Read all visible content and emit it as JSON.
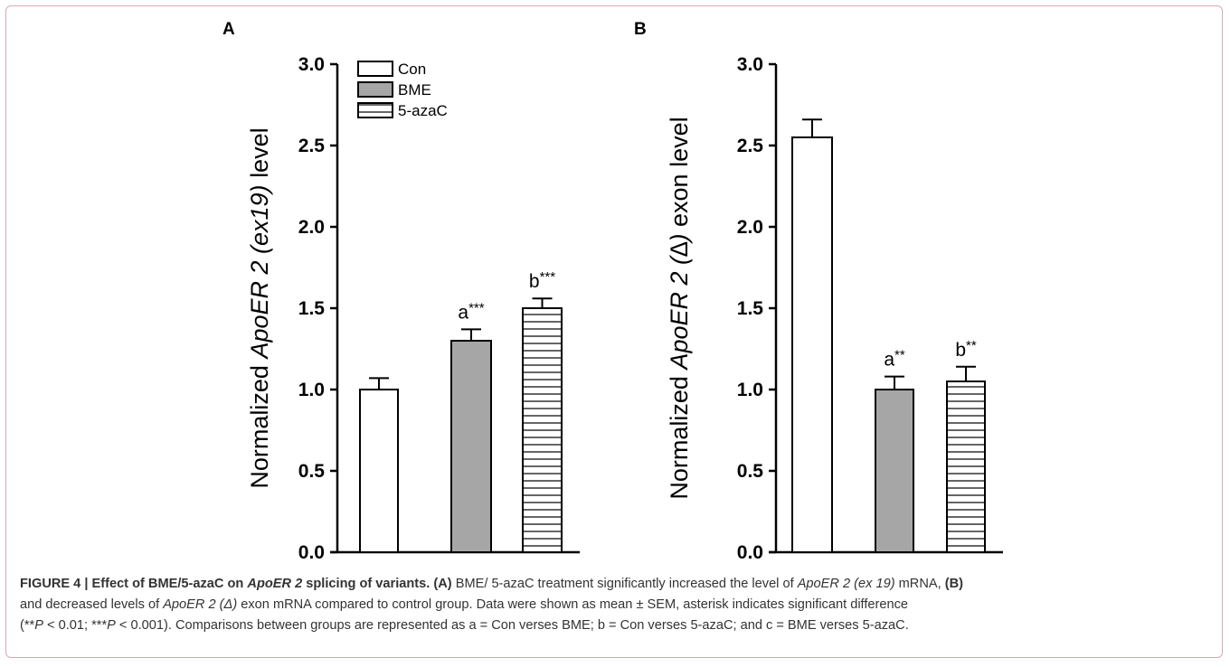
{
  "chart_data": [
    {
      "type": "bar",
      "panel": "A",
      "categories": [
        "Con",
        "BME",
        "5-azaC"
      ],
      "values": [
        1.0,
        1.3,
        1.5
      ],
      "errors": [
        0.07,
        0.07,
        0.06
      ],
      "significance": [
        "",
        "a***",
        "b***"
      ],
      "ylabel_prefix": "Normalized ",
      "ylabel_gene": "ApoER 2",
      "ylabel_variant": " (ex19)",
      "ylabel_suffix": " level",
      "ylim": [
        0,
        3.0
      ],
      "yticks": [
        "0.0",
        "0.5",
        "1.0",
        "1.5",
        "2.0",
        "2.5",
        "3.0"
      ],
      "legend": [
        "Con",
        "BME",
        "5-azaC"
      ],
      "legend_position": "top-left"
    },
    {
      "type": "bar",
      "panel": "B",
      "categories": [
        "Con",
        "BME",
        "5-azaC"
      ],
      "values": [
        2.55,
        1.0,
        1.05
      ],
      "errors": [
        0.11,
        0.08,
        0.09
      ],
      "significance": [
        "",
        "a**",
        "b**"
      ],
      "ylabel_prefix": "Normalized ",
      "ylabel_gene": "ApoER 2",
      "ylabel_variant": " (∆)",
      "ylabel_suffix": " exon level",
      "ylim": [
        0,
        3.0
      ],
      "yticks": [
        "0.0",
        "0.5",
        "1.0",
        "1.5",
        "2.0",
        "2.5",
        "3.0"
      ]
    }
  ],
  "colors": {
    "con_fill": "#ffffff",
    "bme_fill": "#a6a6a6",
    "azac_fill": "#ffffff",
    "stroke": "#000000",
    "frame": "#d9a9b0",
    "caption_text": "#333333"
  },
  "caption": {
    "figure_label": "FIGURE 4 | Effect of BME/5-azaC on ",
    "figure_gene": "ApoER 2",
    "figure_label_end": " splicing of variants.",
    "a_mark": "(A)",
    "t1": " BME/ 5-azaC treatment significantly increased the level of ",
    "g1": "ApoER 2 (ex 19)",
    "t2": " mRNA, ",
    "b_mark": "(B)",
    "t3": "and decreased levels of ",
    "g2": "ApoER 2 (Δ)",
    "t4": " exon mRNA compared to control group. Data were shown as mean ± SEM, asterisk indicates significant difference",
    "t5a": "(**",
    "p1": "P",
    "t5b": " < 0.01; ***",
    "p2": "P",
    "t5c": " < 0.001). Comparisons between groups are represented as a = Con verses BME; b = Con verses 5-azaC; and c = BME verses 5-azaC."
  }
}
